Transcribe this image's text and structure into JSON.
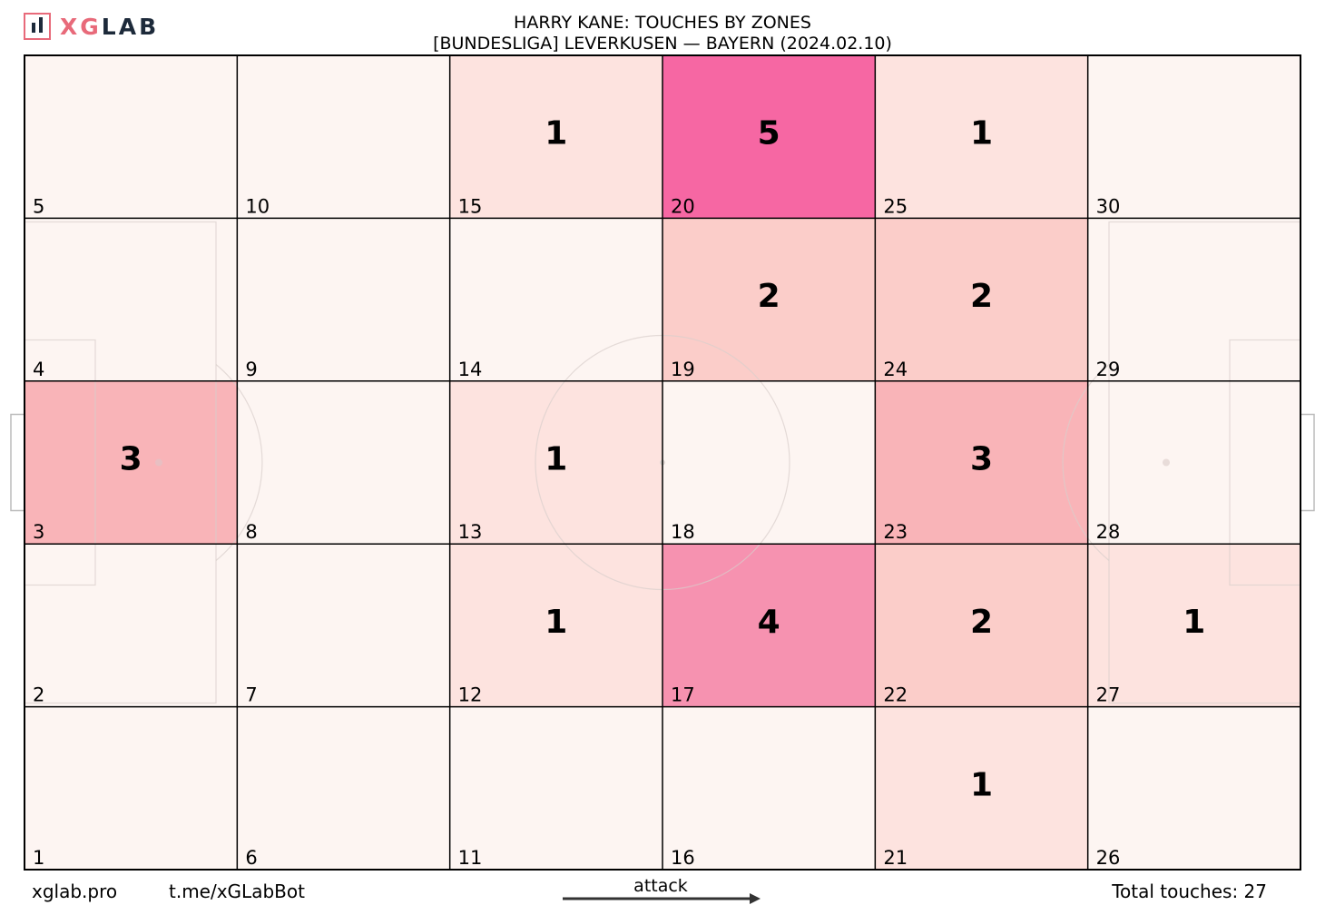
{
  "brand": {
    "logo_text_a": "XG",
    "logo_text_b": "LAB"
  },
  "title": {
    "line1": "HARRY KANE: TOUCHES BY ZONES",
    "line2": "[BUNDESLIGA] LEVERKUSEN —  BAYERN (2024.02.10)"
  },
  "footer": {
    "site": "xglab.pro",
    "bot": "t.me/xGLabBot",
    "attack_label": "attack",
    "total_label": "Total touches: 27"
  },
  "colors": {
    "zero": "#fdf5f2",
    "c1": "#fde3df",
    "c2": "#fbcdc9",
    "c3": "#f9b4b8",
    "c4": "#f692b0",
    "c5": "#f667a3",
    "grid": "#000000"
  },
  "chart_data": {
    "type": "heatmap",
    "title": "HARRY KANE: TOUCHES BY ZONES",
    "subtitle": "[BUNDESLIGA] LEVERKUSEN —  BAYERN (2024.02.10)",
    "columns": 6,
    "rows": 5,
    "zone_numbering": "column-major, zone 1 bottom-left, increasing upward then rightward",
    "zones": [
      1,
      2,
      3,
      4,
      5,
      6,
      7,
      8,
      9,
      10,
      11,
      12,
      13,
      14,
      15,
      16,
      17,
      18,
      19,
      20,
      21,
      22,
      23,
      24,
      25,
      26,
      27,
      28,
      29,
      30
    ],
    "touches": [
      0,
      0,
      3,
      0,
      0,
      0,
      0,
      0,
      0,
      0,
      0,
      1,
      1,
      0,
      1,
      0,
      4,
      0,
      2,
      5,
      1,
      2,
      3,
      2,
      1,
      0,
      1,
      0,
      0,
      0
    ],
    "total_touches": 27,
    "attack_direction": "left-to-right"
  }
}
